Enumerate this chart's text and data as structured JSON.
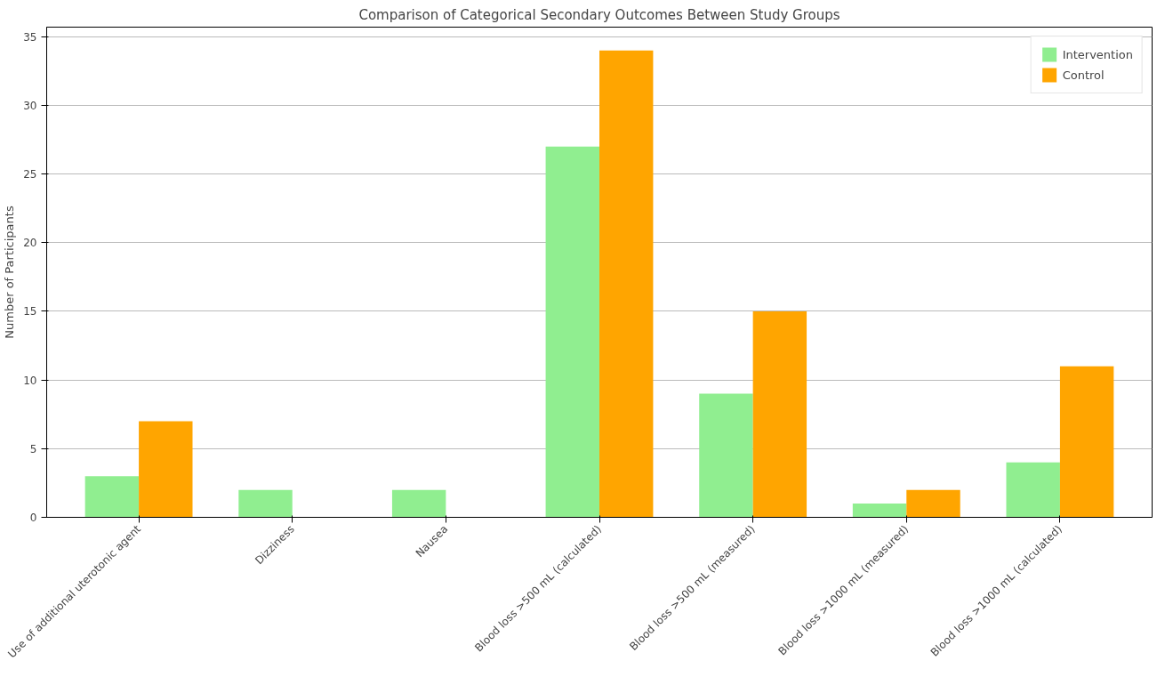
{
  "chart_data": {
    "type": "bar",
    "title": "Comparison of Categorical Secondary Outcomes Between Study Groups",
    "ylabel": "Number of Participants",
    "categories": [
      "Use of additional uterotonic agent",
      "Dizziness",
      "Nausea",
      "Blood loss >500 mL (calculated)",
      "Blood loss >500 mL (measured)",
      "Blood loss >1000 mL (measured)",
      "Blood loss >1000 mL (calculated)"
    ],
    "series": [
      {
        "name": "Intervention",
        "color": "#90ee90",
        "values": [
          3,
          2,
          2,
          27,
          9,
          1,
          4
        ]
      },
      {
        "name": "Control",
        "color": "#ffa500",
        "values": [
          7,
          0,
          0,
          34,
          15,
          2,
          11
        ]
      }
    ],
    "ylim": [
      0,
      35.7
    ],
    "yticks": [
      0,
      5,
      10,
      15,
      20,
      25,
      30,
      35
    ],
    "grid": "y",
    "legend": "top right"
  }
}
